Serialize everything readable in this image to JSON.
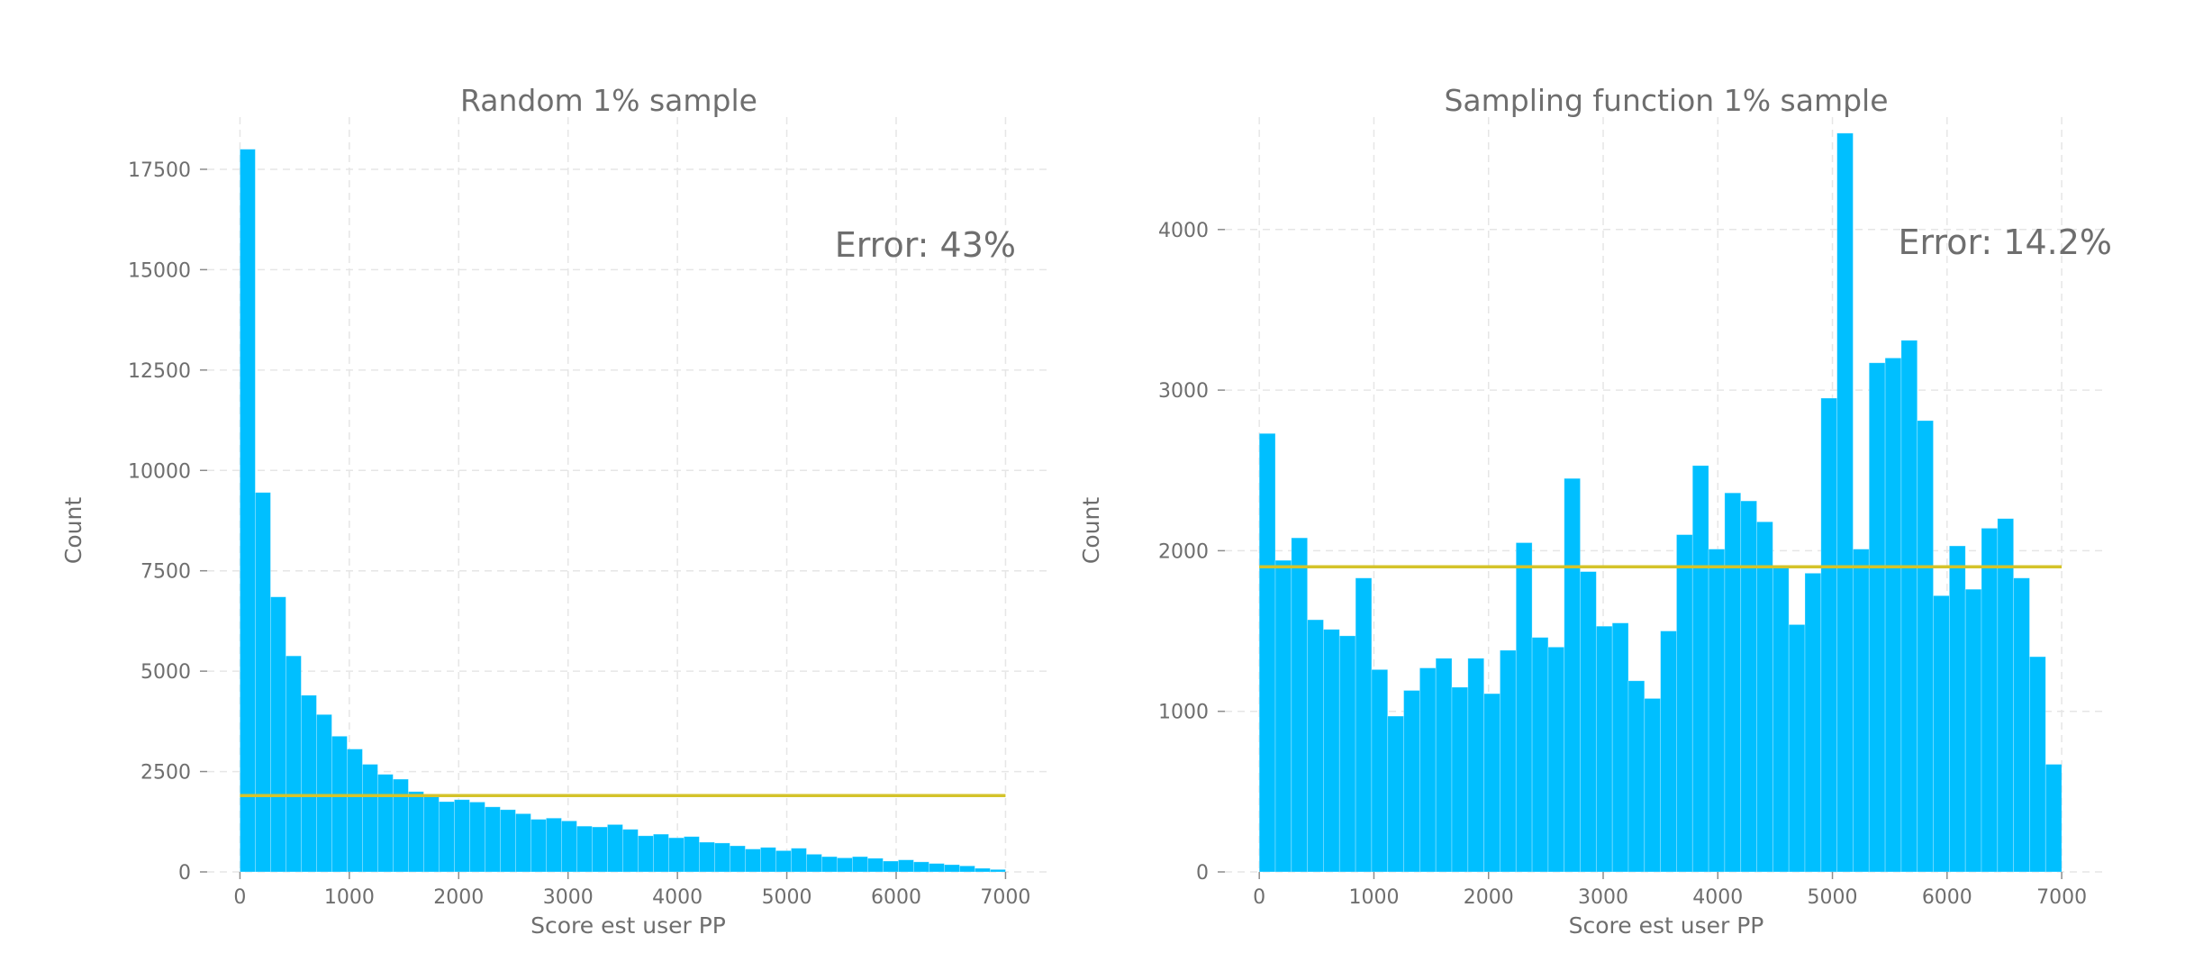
{
  "chart_data": [
    {
      "type": "bar",
      "title": "Random 1% sample",
      "xlabel": "Score est user PP",
      "ylabel": "Count",
      "annotation": "Error: 43%",
      "xlim": [
        -300,
        7400
      ],
      "ylim": [
        0,
        18800
      ],
      "xticks": [
        0,
        1000,
        2000,
        3000,
        4000,
        5000,
        6000,
        7000
      ],
      "yticks": [
        0,
        2500,
        5000,
        7500,
        10000,
        12500,
        15000,
        17500
      ],
      "ytick_labels": [
        "0",
        "2500",
        "5000",
        "7500",
        "10000",
        "12500",
        "15000",
        "17500"
      ],
      "bin_width": 140,
      "bin_start": 0,
      "values": [
        18000,
        9450,
        6850,
        5380,
        4400,
        3920,
        3380,
        3060,
        2680,
        2430,
        2310,
        2000,
        1880,
        1750,
        1800,
        1740,
        1620,
        1550,
        1450,
        1310,
        1340,
        1270,
        1140,
        1120,
        1180,
        1060,
        900,
        940,
        850,
        880,
        740,
        720,
        650,
        570,
        610,
        530,
        590,
        440,
        380,
        350,
        380,
        340,
        270,
        300,
        250,
        210,
        180,
        150,
        90,
        60
      ],
      "mean_line": 1900,
      "grid": true,
      "color": "#00bfff",
      "line_color": "#d4c32a"
    },
    {
      "type": "bar",
      "title": "Sampling function 1% sample",
      "xlabel": "Score est user PP",
      "ylabel": "Count",
      "annotation": "Error: 14.2%",
      "xlim": [
        -300,
        7400
      ],
      "ylim": [
        0,
        4700
      ],
      "xticks": [
        0,
        1000,
        2000,
        3000,
        4000,
        5000,
        6000,
        7000
      ],
      "yticks": [
        0,
        1000,
        2000,
        3000,
        4000
      ],
      "ytick_labels": [
        "0",
        "1000",
        "2000",
        "3000",
        "4000"
      ],
      "bin_width": 140,
      "bin_start": 0,
      "values": [
        2730,
        1940,
        2080,
        1570,
        1510,
        1470,
        1830,
        1260,
        970,
        1130,
        1270,
        1330,
        1150,
        1330,
        1110,
        1380,
        2050,
        1460,
        1400,
        2450,
        1870,
        1530,
        1550,
        1190,
        1080,
        1500,
        2100,
        2530,
        2010,
        2360,
        2310,
        2180,
        1900,
        1540,
        1860,
        2950,
        4600,
        2010,
        3170,
        3200,
        3310,
        2810,
        1720,
        2030,
        1760,
        2140,
        2200,
        1830,
        1340,
        670
      ],
      "mean_line": 1900,
      "grid": true,
      "color": "#00bfff",
      "line_color": "#d4c32a"
    }
  ]
}
